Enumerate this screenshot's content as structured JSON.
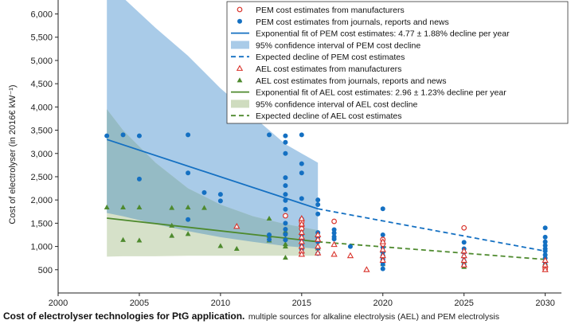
{
  "caption": {
    "bold": "Cost of electrolyser technologies for PtG application.",
    "rest": "multiple sources for alkaline electrolysis (AEL) and PEM electrolysis"
  },
  "chart_data": {
    "type": "scatter",
    "ylabel": "Cost of electrolyser (in 2016€ kW⁻¹)",
    "xlim": [
      2000,
      2031
    ],
    "ylim": [
      0,
      6300
    ],
    "xticks": [
      2000,
      2005,
      2010,
      2015,
      2020,
      2025,
      2030
    ],
    "yticks": [
      500,
      1000,
      1500,
      2000,
      2500,
      3000,
      3500,
      4000,
      4500,
      5000,
      5500,
      6000
    ],
    "ytick_labels": [
      "500",
      "1,000",
      "1,500",
      "2,000",
      "2,500",
      "3,000",
      "3,500",
      "4,000",
      "4,500",
      "5,000",
      "5,500",
      "6,000"
    ],
    "grid": false,
    "legend_position": "top-right",
    "colors": {
      "pem": "#1470c2",
      "pem_ci": "#a9cbe8",
      "ael": "#4e8a2e",
      "ael_ci": "#cfdcbf",
      "overlap": "#8fb7c4",
      "manufacturer": "#d9332b"
    },
    "legend": [
      {
        "key": "pem_manufacturers",
        "label": "PEM cost estimates from manufacturers"
      },
      {
        "key": "pem_journals",
        "label": "PEM cost estimates from journals, reports and news"
      },
      {
        "key": "pem_fit",
        "label": "Exponential fit of PEM cost estimates: 4.77 ± 1.88% decline per year"
      },
      {
        "key": "pem_ci",
        "label": "95% confidence interval of PEM cost decline"
      },
      {
        "key": "pem_expected",
        "label": "Expected decline of PEM cost estimates"
      },
      {
        "key": "ael_manufacturers",
        "label": "AEL cost estimates from manufacturers"
      },
      {
        "key": "ael_journals",
        "label": "AEL cost estimates from journals, reports and news"
      },
      {
        "key": "ael_fit",
        "label": "Exponential fit of AEL cost estimates: 2.96 ± 1.23% decline per year"
      },
      {
        "key": "ael_ci",
        "label": "95% confidence interval of AEL cost decline"
      },
      {
        "key": "ael_expected",
        "label": "Expected decline of AEL cost estimates"
      }
    ],
    "series": [
      {
        "name": "PEM cost estimates from manufacturers",
        "marker": "open-circle",
        "points": [
          [
            2014,
            1660
          ],
          [
            2015,
            1520
          ],
          [
            2015,
            1450
          ],
          [
            2015,
            1380
          ],
          [
            2017,
            1540
          ],
          [
            2020,
            1150
          ],
          [
            2020,
            1050
          ],
          [
            2025,
            1400
          ],
          [
            2030,
            520
          ]
        ]
      },
      {
        "name": "PEM cost estimates from journals, reports and news",
        "marker": "filled-circle",
        "points": [
          [
            2003,
            3380
          ],
          [
            2004,
            3400
          ],
          [
            2005,
            3380
          ],
          [
            2005,
            2450
          ],
          [
            2008,
            3400
          ],
          [
            2008,
            2580
          ],
          [
            2008,
            1580
          ],
          [
            2009,
            2160
          ],
          [
            2010,
            2120
          ],
          [
            2010,
            1980
          ],
          [
            2013,
            3400
          ],
          [
            2013,
            1250
          ],
          [
            2013,
            1150
          ],
          [
            2014,
            3380
          ],
          [
            2014,
            3240
          ],
          [
            2014,
            3000
          ],
          [
            2014,
            2480
          ],
          [
            2014,
            2310
          ],
          [
            2014,
            2120
          ],
          [
            2014,
            1990
          ],
          [
            2014,
            1800
          ],
          [
            2014,
            1500
          ],
          [
            2014,
            1370
          ],
          [
            2014,
            1260
          ],
          [
            2014,
            1140
          ],
          [
            2015,
            3400
          ],
          [
            2015,
            2780
          ],
          [
            2015,
            2580
          ],
          [
            2015,
            2030
          ],
          [
            2015,
            1590
          ],
          [
            2015,
            1360
          ],
          [
            2015,
            1250
          ],
          [
            2015,
            1150
          ],
          [
            2015,
            1020
          ],
          [
            2015,
            940
          ],
          [
            2015,
            870
          ],
          [
            2016,
            2000
          ],
          [
            2016,
            1900
          ],
          [
            2016,
            1700
          ],
          [
            2016,
            1300
          ],
          [
            2016,
            1200
          ],
          [
            2016,
            1100
          ],
          [
            2016,
            960
          ],
          [
            2016,
            850
          ],
          [
            2017,
            1360
          ],
          [
            2017,
            1290
          ],
          [
            2017,
            1210
          ],
          [
            2017,
            1160
          ],
          [
            2018,
            1000
          ],
          [
            2020,
            1810
          ],
          [
            2020,
            1250
          ],
          [
            2020,
            1120
          ],
          [
            2020,
            980
          ],
          [
            2020,
            880
          ],
          [
            2020,
            800
          ],
          [
            2020,
            720
          ],
          [
            2020,
            620
          ],
          [
            2020,
            520
          ],
          [
            2025,
            1090
          ],
          [
            2025,
            950
          ],
          [
            2025,
            870
          ],
          [
            2025,
            780
          ],
          [
            2025,
            690
          ],
          [
            2025,
            600
          ],
          [
            2030,
            1400
          ],
          [
            2030,
            1200
          ],
          [
            2030,
            1100
          ],
          [
            2030,
            1020
          ],
          [
            2030,
            950
          ],
          [
            2030,
            900
          ],
          [
            2030,
            820
          ],
          [
            2030,
            750
          ],
          [
            2030,
            660
          ],
          [
            2030,
            580
          ]
        ]
      },
      {
        "name": "AEL cost estimates from manufacturers",
        "marker": "open-triangle",
        "points": [
          [
            2011,
            1430
          ],
          [
            2015,
            1600
          ],
          [
            2015,
            1480
          ],
          [
            2015,
            1300
          ],
          [
            2015,
            1200
          ],
          [
            2015,
            1100
          ],
          [
            2015,
            1000
          ],
          [
            2015,
            900
          ],
          [
            2015,
            830
          ],
          [
            2016,
            1250
          ],
          [
            2016,
            1150
          ],
          [
            2016,
            1000
          ],
          [
            2016,
            860
          ],
          [
            2017,
            1040
          ],
          [
            2017,
            830
          ],
          [
            2018,
            800
          ],
          [
            2019,
            500
          ],
          [
            2020,
            1100
          ],
          [
            2020,
            930
          ],
          [
            2020,
            800
          ],
          [
            2020,
            700
          ],
          [
            2025,
            900
          ],
          [
            2025,
            800
          ],
          [
            2025,
            700
          ],
          [
            2025,
            600
          ],
          [
            2030,
            700
          ],
          [
            2030,
            600
          ],
          [
            2030,
            500
          ]
        ]
      },
      {
        "name": "AEL cost estimates from journals, reports and news",
        "marker": "filled-triangle",
        "points": [
          [
            2003,
            1840
          ],
          [
            2004,
            1140
          ],
          [
            2004,
            1840
          ],
          [
            2005,
            1840
          ],
          [
            2005,
            1130
          ],
          [
            2007,
            1830
          ],
          [
            2007,
            1450
          ],
          [
            2007,
            1230
          ],
          [
            2008,
            1840
          ],
          [
            2008,
            1270
          ],
          [
            2009,
            1830
          ],
          [
            2010,
            1010
          ],
          [
            2011,
            950
          ],
          [
            2013,
            1600
          ],
          [
            2013,
            1230
          ],
          [
            2013,
            1130
          ],
          [
            2014,
            1320
          ],
          [
            2014,
            1170
          ],
          [
            2014,
            1050
          ],
          [
            2014,
            1000
          ],
          [
            2014,
            760
          ],
          [
            2015,
            1100
          ],
          [
            2016,
            1170
          ],
          [
            2016,
            960
          ],
          [
            2020,
            900
          ],
          [
            2020,
            620
          ],
          [
            2025,
            800
          ],
          [
            2025,
            680
          ],
          [
            2025,
            560
          ],
          [
            2030,
            640
          ]
        ]
      },
      {
        "name": "Exponential fit of PEM cost estimates: 4.77 ± 1.88% decline per year",
        "marker": "line",
        "x": [
          2003,
          2016
        ],
        "y": [
          3300,
          1810
        ],
        "style": "solid"
      },
      {
        "name": "Expected decline of PEM cost estimates",
        "marker": "line",
        "x": [
          2016,
          2030
        ],
        "y": [
          1810,
          900
        ],
        "style": "dashed"
      },
      {
        "name": "Exponential fit of AEL cost estimates: 2.96 ± 1.23% decline per year",
        "marker": "line",
        "x": [
          2003,
          2016
        ],
        "y": [
          1610,
          1100
        ],
        "style": "solid"
      },
      {
        "name": "Expected decline of AEL cost estimates",
        "marker": "line",
        "x": [
          2016,
          2030
        ],
        "y": [
          1100,
          720
        ],
        "style": "dashed"
      },
      {
        "name": "95% confidence interval of PEM cost decline",
        "marker": "band",
        "x": [
          2003,
          2004,
          2006,
          2008,
          2010,
          2012,
          2014,
          2016
        ],
        "upper": [
          6600,
          6350,
          5700,
          5100,
          4400,
          3800,
          3200,
          2800
        ],
        "lower": [
          1720,
          1650,
          1480,
          1330,
          1200,
          1100,
          1010,
          950
        ]
      },
      {
        "name": "95% confidence interval of AEL cost decline",
        "marker": "band",
        "x": [
          2003,
          2004,
          2006,
          2008,
          2010,
          2012,
          2014,
          2016
        ],
        "upper": [
          3950,
          3500,
          2800,
          2250,
          1900,
          1650,
          1480,
          1350
        ],
        "lower": [
          780,
          790,
          790,
          800,
          800,
          800,
          800,
          800
        ]
      }
    ]
  }
}
